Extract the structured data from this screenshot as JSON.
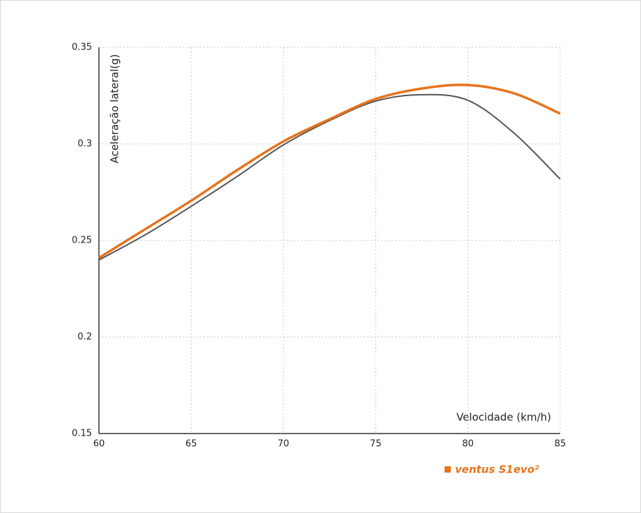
{
  "chart_data": {
    "type": "line",
    "y_label": "Aceleração lateral(g)",
    "x_label": "Velocidade (km/h)",
    "x": [
      60,
      62.5,
      65,
      67.5,
      70,
      72.5,
      75,
      77.5,
      80,
      82.5,
      85
    ],
    "series": [
      {
        "name": "ventus S1evo²",
        "color": "#e8721c",
        "values": [
          0.241,
          0.2558,
          0.2706,
          0.2865,
          0.3013,
          0.3128,
          0.3233,
          0.3287,
          0.3305,
          0.3262,
          0.3157
        ]
      },
      {
        "color": "#555555",
        "values": [
          0.2399,
          0.2529,
          0.2677,
          0.2832,
          0.2995,
          0.3121,
          0.3222,
          0.3255,
          0.3226,
          0.3056,
          0.2818
        ]
      }
    ],
    "xlim": [
      60,
      85
    ],
    "xticks": [
      60,
      65,
      70,
      75,
      80,
      85
    ],
    "ylim": [
      0.15,
      0.35
    ],
    "yticks": [
      0.15,
      0.2,
      0.25,
      0.3,
      0.35
    ],
    "grid": true
  }
}
